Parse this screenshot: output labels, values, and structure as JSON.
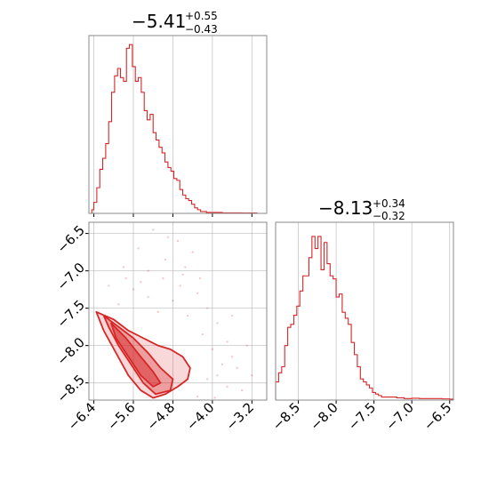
{
  "colors": {
    "line": "#d62728",
    "fill": "#d62728",
    "grid": "#b0b0b0",
    "frame": "#888888"
  },
  "chart_data": [
    {
      "panel": "top-left",
      "type": "histogram",
      "title": {
        "main": "−5.41",
        "upper": "+0.55",
        "lower": "−0.43"
      },
      "xlim": [
        -6.5,
        -2.9
      ],
      "xticks": [
        -6.4,
        -5.6,
        -4.8,
        -4.0,
        -3.2
      ],
      "grid": true,
      "bins": [
        [
          -6.5,
          0
        ],
        [
          -6.44,
          2
        ],
        [
          -6.4,
          6
        ],
        [
          -6.34,
          14
        ],
        [
          -6.28,
          24
        ],
        [
          -6.22,
          30
        ],
        [
          -6.16,
          38
        ],
        [
          -6.1,
          50
        ],
        [
          -6.04,
          66
        ],
        [
          -5.98,
          75
        ],
        [
          -5.92,
          79
        ],
        [
          -5.86,
          74
        ],
        [
          -5.8,
          72
        ],
        [
          -5.74,
          90
        ],
        [
          -5.68,
          92
        ],
        [
          -5.62,
          80
        ],
        [
          -5.56,
          72
        ],
        [
          -5.5,
          74
        ],
        [
          -5.44,
          66
        ],
        [
          -5.38,
          56
        ],
        [
          -5.32,
          51
        ],
        [
          -5.26,
          54
        ],
        [
          -5.2,
          44
        ],
        [
          -5.14,
          40
        ],
        [
          -5.08,
          36
        ],
        [
          -5.02,
          33
        ],
        [
          -4.96,
          28
        ],
        [
          -4.9,
          25
        ],
        [
          -4.84,
          23
        ],
        [
          -4.78,
          19
        ],
        [
          -4.72,
          18
        ],
        [
          -4.66,
          13
        ],
        [
          -4.6,
          10
        ],
        [
          -4.54,
          8
        ],
        [
          -4.48,
          7
        ],
        [
          -4.42,
          5
        ],
        [
          -4.36,
          3
        ],
        [
          -4.3,
          2
        ],
        [
          -4.24,
          1
        ],
        [
          -4.18,
          1
        ],
        [
          -4.12,
          0.5
        ],
        [
          -3.98,
          0.5
        ],
        [
          -3.8,
          0.3
        ],
        [
          -3.4,
          0.2
        ],
        [
          -3.1,
          0
        ]
      ],
      "ymax": 95
    },
    {
      "panel": "bottom-right",
      "type": "histogram",
      "title": {
        "main": "−8.13",
        "upper": "+0.34",
        "lower": "−0.32"
      },
      "xlim": [
        -8.8,
        -6.45
      ],
      "xticks": [
        -8.5,
        -8.0,
        -7.5,
        -7.0,
        -6.5
      ],
      "grid": true,
      "bins": [
        [
          -8.8,
          12
        ],
        [
          -8.76,
          18
        ],
        [
          -8.72,
          22
        ],
        [
          -8.68,
          36
        ],
        [
          -8.64,
          48
        ],
        [
          -8.6,
          50
        ],
        [
          -8.56,
          56
        ],
        [
          -8.52,
          62
        ],
        [
          -8.48,
          72
        ],
        [
          -8.44,
          82
        ],
        [
          -8.4,
          82
        ],
        [
          -8.36,
          94
        ],
        [
          -8.32,
          108
        ],
        [
          -8.28,
          100
        ],
        [
          -8.24,
          108
        ],
        [
          -8.2,
          86
        ],
        [
          -8.16,
          104
        ],
        [
          -8.12,
          90
        ],
        [
          -8.08,
          82
        ],
        [
          -8.04,
          80
        ],
        [
          -8.0,
          68
        ],
        [
          -7.96,
          70
        ],
        [
          -7.92,
          58
        ],
        [
          -7.88,
          54
        ],
        [
          -7.84,
          50
        ],
        [
          -7.8,
          38
        ],
        [
          -7.76,
          30
        ],
        [
          -7.72,
          22
        ],
        [
          -7.68,
          14
        ],
        [
          -7.64,
          12
        ],
        [
          -7.6,
          10
        ],
        [
          -7.56,
          8
        ],
        [
          -7.52,
          5
        ],
        [
          -7.48,
          4
        ],
        [
          -7.44,
          3
        ],
        [
          -7.4,
          2
        ],
        [
          -7.3,
          2
        ],
        [
          -7.2,
          1.5
        ],
        [
          -7.1,
          1
        ],
        [
          -7.0,
          1.2
        ],
        [
          -6.9,
          1
        ],
        [
          -6.8,
          1
        ],
        [
          -6.7,
          1
        ],
        [
          -6.6,
          0.8
        ],
        [
          -6.5,
          0.6
        ],
        [
          -6.46,
          0
        ]
      ],
      "ymax": 115
    },
    {
      "panel": "bottom-left",
      "type": "contour",
      "xlim": [
        -6.5,
        -2.9
      ],
      "ylim": [
        -8.73,
        -6.35
      ],
      "xticks": [
        -6.4,
        -5.6,
        -4.8,
        -4.0,
        -3.2
      ],
      "yticks": [
        -6.5,
        -7.0,
        -7.5,
        -8.0,
        -8.5
      ],
      "grid": true,
      "contours": [
        {
          "level": "outer",
          "points": [
            [
              -6.35,
              -7.55
            ],
            [
              -6.0,
              -7.65
            ],
            [
              -5.7,
              -7.8
            ],
            [
              -5.4,
              -7.9
            ],
            [
              -5.1,
              -8.0
            ],
            [
              -4.85,
              -8.05
            ],
            [
              -4.6,
              -8.15
            ],
            [
              -4.45,
              -8.3
            ],
            [
              -4.5,
              -8.45
            ],
            [
              -4.7,
              -8.55
            ],
            [
              -4.95,
              -8.65
            ],
            [
              -5.2,
              -8.7
            ],
            [
              -5.45,
              -8.6
            ],
            [
              -5.7,
              -8.4
            ],
            [
              -5.95,
              -8.1
            ],
            [
              -6.2,
              -7.8
            ]
          ]
        },
        {
          "level": "middle",
          "points": [
            [
              -6.2,
              -7.6
            ],
            [
              -5.9,
              -7.75
            ],
            [
              -5.6,
              -7.9
            ],
            [
              -5.3,
              -8.1
            ],
            [
              -5.05,
              -8.3
            ],
            [
              -4.8,
              -8.45
            ],
            [
              -4.85,
              -8.6
            ],
            [
              -5.15,
              -8.65
            ],
            [
              -5.4,
              -8.5
            ],
            [
              -5.65,
              -8.25
            ],
            [
              -5.9,
              -8.0
            ],
            [
              -6.1,
              -7.75
            ]
          ]
        },
        {
          "level": "inner",
          "points": [
            [
              -6.05,
              -7.7
            ],
            [
              -5.75,
              -7.9
            ],
            [
              -5.45,
              -8.15
            ],
            [
              -5.2,
              -8.35
            ],
            [
              -5.05,
              -8.5
            ],
            [
              -5.2,
              -8.55
            ],
            [
              -5.45,
              -8.4
            ],
            [
              -5.7,
              -8.15
            ],
            [
              -5.95,
              -7.9
            ]
          ]
        }
      ],
      "scatter": [
        [
          -5.2,
          -6.45
        ],
        [
          -4.9,
          -6.55
        ],
        [
          -4.7,
          -6.6
        ],
        [
          -5.5,
          -6.7
        ],
        [
          -4.4,
          -6.75
        ],
        [
          -5.8,
          -6.95
        ],
        [
          -4.6,
          -7.05
        ],
        [
          -5.0,
          -7.1
        ],
        [
          -6.1,
          -7.2
        ],
        [
          -5.6,
          -7.25
        ],
        [
          -4.3,
          -7.3
        ],
        [
          -5.3,
          -7.35
        ],
        [
          -4.8,
          -7.4
        ],
        [
          -5.9,
          -7.45
        ],
        [
          -4.1,
          -7.5
        ],
        [
          -5.1,
          -7.55
        ],
        [
          -4.5,
          -7.6
        ],
        [
          -3.9,
          -7.7
        ],
        [
          -4.2,
          -7.85
        ],
        [
          -3.7,
          -7.95
        ],
        [
          -4.0,
          -8.05
        ],
        [
          -3.6,
          -8.15
        ],
        [
          -3.8,
          -8.25
        ],
        [
          -3.5,
          -8.3
        ],
        [
          -3.9,
          -8.4
        ],
        [
          -4.1,
          -8.45
        ],
        [
          -3.7,
          -8.55
        ],
        [
          -3.4,
          -8.6
        ],
        [
          -4.3,
          -8.68
        ],
        [
          -3.95,
          -8.7
        ],
        [
          -5.3,
          -7.0
        ],
        [
          -4.95,
          -6.85
        ],
        [
          -5.75,
          -7.1
        ],
        [
          -4.65,
          -7.2
        ],
        [
          -5.45,
          -7.15
        ],
        [
          -4.25,
          -7.1
        ],
        [
          -3.6,
          -7.6
        ],
        [
          -3.3,
          -8.0
        ],
        [
          -3.2,
          -8.4
        ],
        [
          -4.55,
          -6.95
        ]
      ]
    }
  ]
}
